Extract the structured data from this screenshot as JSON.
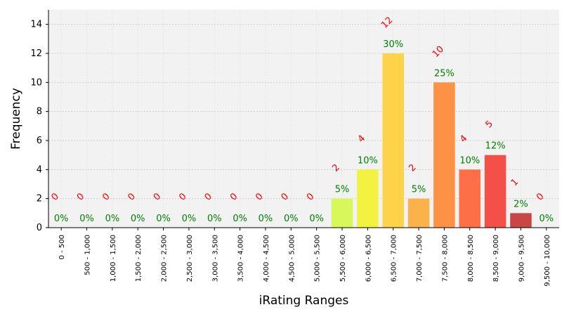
{
  "chart_data": {
    "type": "bar",
    "xlabel": "iRating Ranges",
    "ylabel": "Frequency",
    "ylim": [
      0,
      15
    ],
    "yticks": [
      0,
      2,
      4,
      6,
      8,
      10,
      12,
      14
    ],
    "grid": true,
    "categories": [
      "0 - 500",
      "500 - 1,000",
      "1,000 - 1,500",
      "1,500 - 2,000",
      "2,000 - 2,500",
      "2,500 - 3,000",
      "3,000 - 3,500",
      "3,500 - 4,000",
      "4,000 - 4,500",
      "4,500 - 5,000",
      "5,000 - 5,500",
      "5,500 - 6,000",
      "6,000 - 6,500",
      "6,500 - 7,000",
      "7,000 - 7,500",
      "7,500 - 8,000",
      "8,000 - 8,500",
      "8,500 - 9,000",
      "9,000 - 9,500",
      "9,500 - 10,000"
    ],
    "values": [
      0,
      0,
      0,
      0,
      0,
      0,
      0,
      0,
      0,
      0,
      0,
      2,
      4,
      12,
      2,
      10,
      4,
      5,
      1,
      0
    ],
    "percent_labels": [
      "0%",
      "0%",
      "0%",
      "0%",
      "0%",
      "0%",
      "0%",
      "0%",
      "0%",
      "0%",
      "0%",
      "5%",
      "10%",
      "30%",
      "5%",
      "25%",
      "10%",
      "12%",
      "2%",
      "0%"
    ],
    "colors": [
      "#cccccc",
      "#cccccc",
      "#cccccc",
      "#cccccc",
      "#cccccc",
      "#cccccc",
      "#cccccc",
      "#cccccc",
      "#cccccc",
      "#cccccc",
      "#cccccc",
      "#d7f75b",
      "#f3f241",
      "#fcd349",
      "#fbb24b",
      "#fd9246",
      "#ff6f47",
      "#f4504a",
      "#c94646",
      "#cccccc"
    ],
    "count_label_color": "#ff0000",
    "percent_label_color": "#008000",
    "plot_background": "#f2f2f2"
  }
}
